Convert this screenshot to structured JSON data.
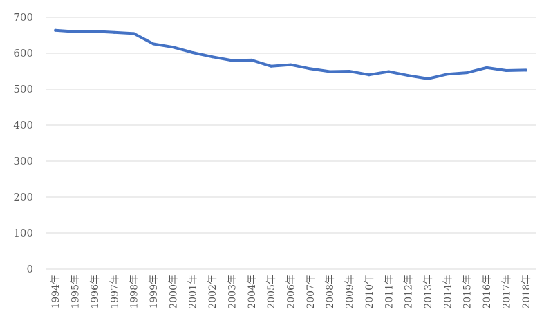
{
  "chart_data": {
    "type": "line",
    "title": "",
    "xlabel": "",
    "ylabel": "",
    "categories": [
      "1994年",
      "1995年",
      "1996年",
      "1997年",
      "1998年",
      "1999年",
      "2000年",
      "2001年",
      "2002年",
      "2003年",
      "2004年",
      "2005年",
      "2006年",
      "2007年",
      "2008年",
      "2009年",
      "2010年",
      "2011年",
      "2012年",
      "2013年",
      "2014年",
      "2015年",
      "2016年",
      "2017年",
      "2018年"
    ],
    "series": [
      {
        "values": [
          664,
          660,
          661,
          658,
          655,
          626,
          617,
          602,
          590,
          580,
          581,
          564,
          568,
          557,
          549,
          550,
          540,
          549,
          538,
          529,
          542,
          546,
          560,
          552,
          553
        ],
        "color": "#4472c4"
      }
    ],
    "ylim": [
      0,
      700
    ],
    "yticks": [
      0,
      100,
      200,
      300,
      400,
      500,
      600,
      700
    ],
    "grid": true,
    "legend": "none"
  }
}
